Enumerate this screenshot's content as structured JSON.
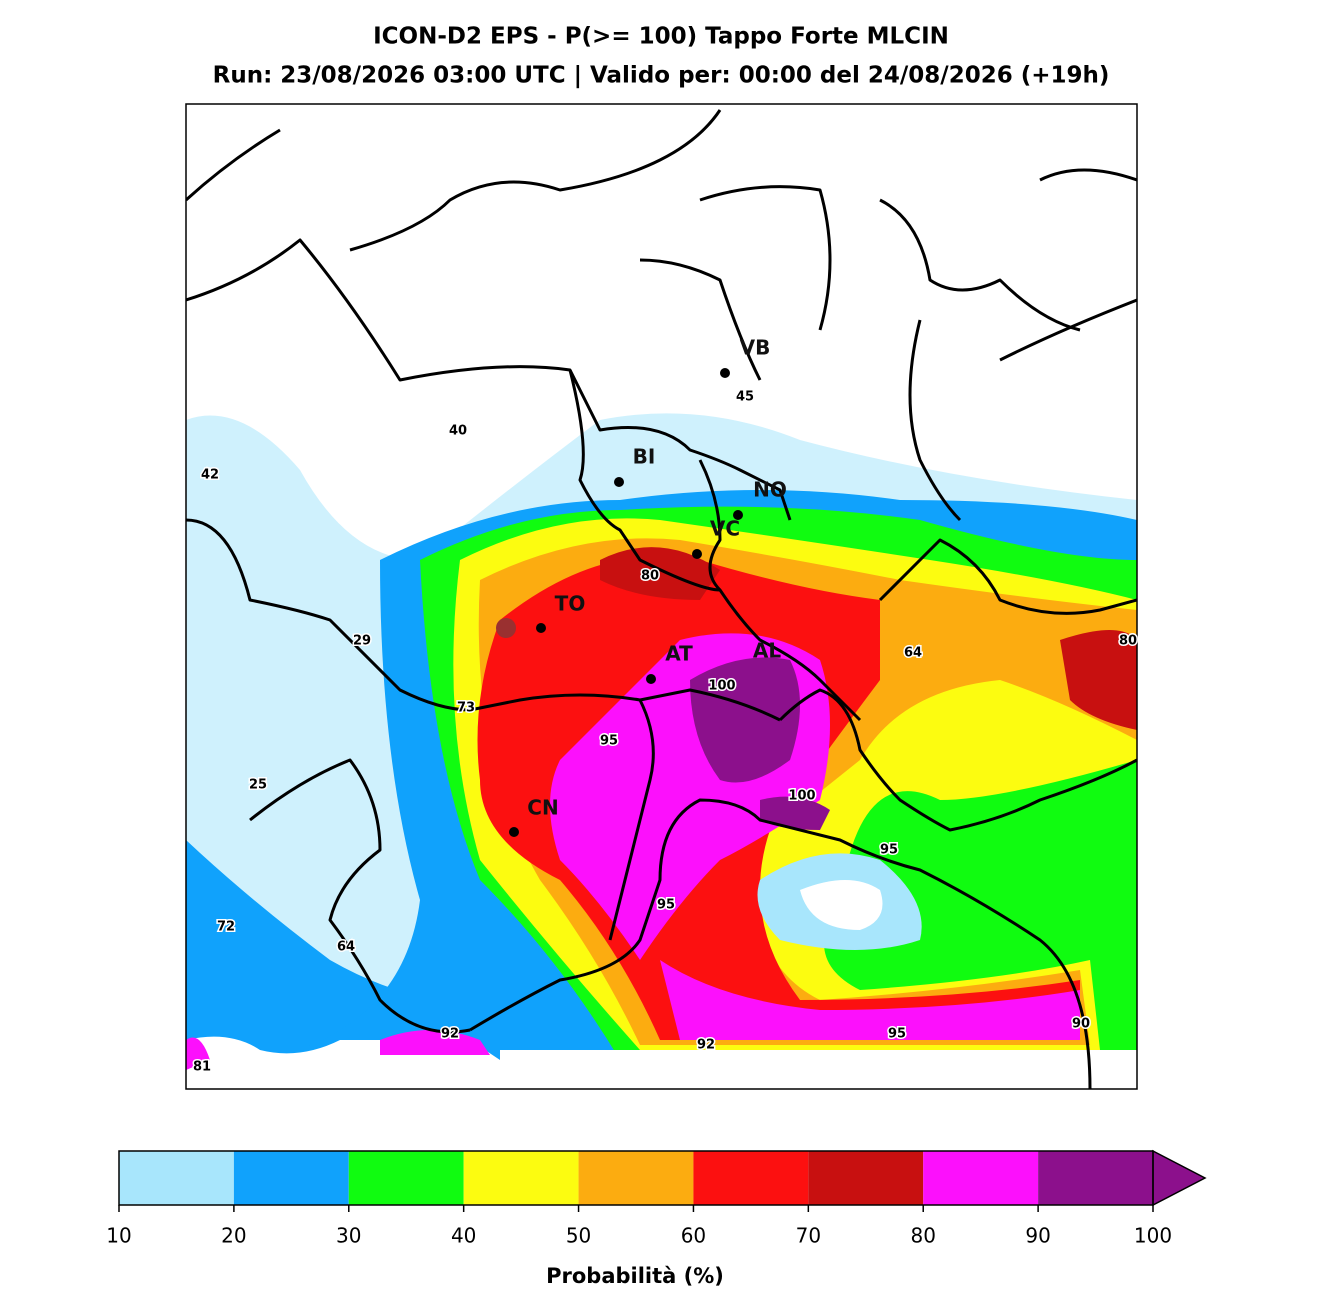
{
  "title": [
    "ICON-D2 EPS - P(>= 100) Tappo Forte MLCIN",
    "Run: 23/08/2026 03:00 UTC | Valido per: 00:00 del 24/08/2026 (+19h)"
  ],
  "cities": [
    "VB",
    "BI",
    "NO",
    "VC",
    "TO",
    "AT",
    "AL",
    "CN"
  ],
  "contour_labels": [
    40,
    42,
    45,
    80,
    29,
    64,
    80,
    100,
    73,
    95,
    25,
    100,
    95,
    95,
    72,
    64,
    90,
    92,
    95,
    92,
    81
  ],
  "colorbar": {
    "ticks": [
      10,
      20,
      30,
      40,
      50,
      60,
      70,
      80,
      90,
      100
    ],
    "colors": [
      "#a8e6fc",
      "#10a2fc",
      "#10fc10",
      "#fcfc10",
      "#fcac10",
      "#fc1010",
      "#c81010",
      "#fc10fc",
      "#8c108c"
    ],
    "extend_color": "#8c108c",
    "label": "Probabilità (%)"
  }
}
